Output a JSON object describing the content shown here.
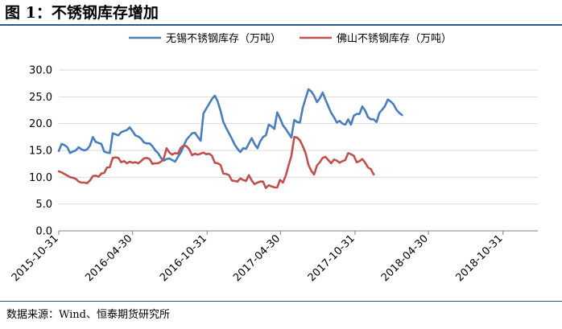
{
  "figure_title": "图 1：不锈钢库存增加",
  "source_note": "数据来源：Wind、恒泰期货研究所",
  "chart_data": {
    "type": "line",
    "title": "",
    "xlabel": "",
    "ylabel": "",
    "ylim": [
      0,
      30
    ],
    "yticks": [
      "0.0",
      "5.0",
      "10.0",
      "15.0",
      "20.0",
      "25.0",
      "30.0"
    ],
    "xticks": [
      "2015-10-31",
      "2016-04-30",
      "2016-10-31",
      "2017-04-30",
      "2017-10-31",
      "2018-04-30",
      "2018-10-31"
    ],
    "x_start": "2015-10-31",
    "x_end": "2019-01-25",
    "grid": "horizontal",
    "legend_position": "top",
    "series": [
      {
        "name": "无锡不锈钢库存（万吨）",
        "color": "#4a7ebb",
        "points": [
          [
            "2015-10-31",
            14.9
          ],
          [
            "2015-11-07",
            16.2
          ],
          [
            "2015-11-14",
            16.0
          ],
          [
            "2015-11-21",
            15.6
          ],
          [
            "2015-11-28",
            14.5
          ],
          [
            "2015-12-05",
            14.8
          ],
          [
            "2015-12-12",
            15.0
          ],
          [
            "2015-12-19",
            15.6
          ],
          [
            "2015-12-26",
            15.2
          ],
          [
            "2016-01-02",
            15.0
          ],
          [
            "2016-01-09",
            15.2
          ],
          [
            "2016-01-16",
            15.9
          ],
          [
            "2016-01-23",
            17.5
          ],
          [
            "2016-01-30",
            16.6
          ],
          [
            "2016-02-06",
            16.4
          ],
          [
            "2016-02-13",
            16.2
          ],
          [
            "2016-02-20",
            14.8
          ],
          [
            "2016-02-27",
            14.6
          ],
          [
            "2016-03-05",
            14.5
          ],
          [
            "2016-03-12",
            18.2
          ],
          [
            "2016-03-19",
            18.0
          ],
          [
            "2016-03-26",
            17.8
          ],
          [
            "2016-04-02",
            18.4
          ],
          [
            "2016-04-09",
            18.6
          ],
          [
            "2016-04-16",
            18.8
          ],
          [
            "2016-04-23",
            19.3
          ],
          [
            "2016-04-30",
            18.6
          ],
          [
            "2016-05-07",
            17.8
          ],
          [
            "2016-05-14",
            17.6
          ],
          [
            "2016-05-21",
            17.2
          ],
          [
            "2016-05-28",
            16.5
          ],
          [
            "2016-06-04",
            16.3
          ],
          [
            "2016-06-11",
            16.3
          ],
          [
            "2016-06-18",
            15.8
          ],
          [
            "2016-06-25",
            15.0
          ],
          [
            "2016-07-02",
            14.5
          ],
          [
            "2016-07-09",
            13.6
          ],
          [
            "2016-07-16",
            13.1
          ],
          [
            "2016-07-23",
            13.4
          ],
          [
            "2016-07-30",
            13.5
          ],
          [
            "2016-08-06",
            13.2
          ],
          [
            "2016-08-13",
            12.9
          ],
          [
            "2016-08-20",
            13.8
          ],
          [
            "2016-08-27",
            14.6
          ],
          [
            "2016-09-03",
            15.8
          ],
          [
            "2016-09-10",
            17.0
          ],
          [
            "2016-09-17",
            17.6
          ],
          [
            "2016-09-24",
            18.2
          ],
          [
            "2016-10-01",
            18.3
          ],
          [
            "2016-10-08",
            17.5
          ],
          [
            "2016-10-15",
            16.8
          ],
          [
            "2016-10-22",
            21.9
          ],
          [
            "2016-10-29",
            22.8
          ],
          [
            "2016-11-05",
            23.7
          ],
          [
            "2016-11-12",
            24.6
          ],
          [
            "2016-11-19",
            25.2
          ],
          [
            "2016-11-26",
            24.2
          ],
          [
            "2016-12-03",
            22.4
          ],
          [
            "2016-12-10",
            20.3
          ],
          [
            "2016-12-17",
            19.2
          ],
          [
            "2016-12-24",
            18.2
          ],
          [
            "2016-12-31",
            17.2
          ],
          [
            "2017-01-07",
            16.1
          ],
          [
            "2017-01-14",
            15.3
          ],
          [
            "2017-01-21",
            14.7
          ],
          [
            "2017-01-28",
            15.4
          ],
          [
            "2017-02-04",
            15.3
          ],
          [
            "2017-02-11",
            16.3
          ],
          [
            "2017-02-18",
            17.3
          ],
          [
            "2017-02-25",
            16.2
          ],
          [
            "2017-03-04",
            15.4
          ],
          [
            "2017-03-11",
            16.7
          ],
          [
            "2017-03-18",
            17.5
          ],
          [
            "2017-03-25",
            17.8
          ],
          [
            "2017-04-01",
            19.8
          ],
          [
            "2017-04-08",
            19.5
          ],
          [
            "2017-04-15",
            19.0
          ],
          [
            "2017-04-22",
            22.1
          ],
          [
            "2017-04-29",
            21.0
          ],
          [
            "2017-05-06",
            19.7
          ],
          [
            "2017-05-13",
            19.0
          ],
          [
            "2017-05-20",
            18.2
          ],
          [
            "2017-05-27",
            17.4
          ],
          [
            "2017-06-03",
            20.7
          ],
          [
            "2017-06-10",
            20.3
          ],
          [
            "2017-06-17",
            20.2
          ],
          [
            "2017-06-24",
            22.9
          ],
          [
            "2017-07-01",
            24.7
          ],
          [
            "2017-07-08",
            26.4
          ],
          [
            "2017-07-15",
            26.0
          ],
          [
            "2017-07-22",
            25.2
          ],
          [
            "2017-07-29",
            24.0
          ],
          [
            "2017-08-05",
            24.7
          ],
          [
            "2017-08-12",
            25.8
          ],
          [
            "2017-08-19",
            24.5
          ],
          [
            "2017-08-26",
            23.2
          ],
          [
            "2017-09-02",
            22.0
          ],
          [
            "2017-09-09",
            21.2
          ],
          [
            "2017-09-16",
            20.2
          ],
          [
            "2017-09-23",
            20.5
          ],
          [
            "2017-09-30",
            20.0
          ],
          [
            "2017-10-07",
            19.8
          ],
          [
            "2017-10-14",
            20.8
          ],
          [
            "2017-10-21",
            19.8
          ],
          [
            "2017-10-28",
            21.5
          ],
          [
            "2017-11-04",
            21.8
          ],
          [
            "2017-11-11",
            21.8
          ],
          [
            "2017-11-18",
            23.2
          ],
          [
            "2017-11-25",
            22.4
          ],
          [
            "2017-12-02",
            21.2
          ],
          [
            "2017-12-09",
            20.8
          ],
          [
            "2017-12-16",
            20.8
          ],
          [
            "2017-12-23",
            20.3
          ],
          [
            "2017-12-30",
            22.0
          ],
          [
            "2018-01-06",
            22.6
          ],
          [
            "2018-01-13",
            23.3
          ],
          [
            "2018-01-20",
            24.5
          ],
          [
            "2018-01-27",
            24.1
          ],
          [
            "2018-02-03",
            23.6
          ],
          [
            "2018-02-10",
            22.6
          ],
          [
            "2018-02-17",
            22.0
          ],
          [
            "2018-02-24",
            21.6
          ]
        ]
      },
      {
        "name": "佛山不锈钢库存（万吨）",
        "color": "#c0504d",
        "points": [
          [
            "2015-10-31",
            11.1
          ],
          [
            "2015-11-07",
            10.9
          ],
          [
            "2015-11-14",
            10.6
          ],
          [
            "2015-11-21",
            10.3
          ],
          [
            "2015-11-28",
            10.0
          ],
          [
            "2015-12-05",
            9.9
          ],
          [
            "2015-12-12",
            9.7
          ],
          [
            "2015-12-19",
            9.2
          ],
          [
            "2015-12-26",
            9.0
          ],
          [
            "2016-01-02",
            9.0
          ],
          [
            "2016-01-09",
            8.9
          ],
          [
            "2016-01-16",
            9.4
          ],
          [
            "2016-01-23",
            10.2
          ],
          [
            "2016-01-30",
            10.3
          ],
          [
            "2016-02-06",
            10.1
          ],
          [
            "2016-02-13",
            10.7
          ],
          [
            "2016-02-20",
            10.8
          ],
          [
            "2016-02-27",
            11.8
          ],
          [
            "2016-03-05",
            11.9
          ],
          [
            "2016-03-12",
            13.6
          ],
          [
            "2016-03-19",
            13.7
          ],
          [
            "2016-03-26",
            13.6
          ],
          [
            "2016-04-02",
            12.8
          ],
          [
            "2016-04-09",
            13.0
          ],
          [
            "2016-04-16",
            12.6
          ],
          [
            "2016-04-23",
            12.9
          ],
          [
            "2016-04-30",
            12.7
          ],
          [
            "2016-05-07",
            12.8
          ],
          [
            "2016-05-14",
            12.6
          ],
          [
            "2016-05-21",
            13.0
          ],
          [
            "2016-05-28",
            13.5
          ],
          [
            "2016-06-04",
            13.6
          ],
          [
            "2016-06-11",
            13.4
          ],
          [
            "2016-06-18",
            12.5
          ],
          [
            "2016-06-25",
            12.6
          ],
          [
            "2016-07-02",
            12.6
          ],
          [
            "2016-07-09",
            12.9
          ],
          [
            "2016-07-16",
            13.5
          ],
          [
            "2016-07-23",
            15.4
          ],
          [
            "2016-07-30",
            14.6
          ],
          [
            "2016-08-06",
            14.2
          ],
          [
            "2016-08-13",
            14.5
          ],
          [
            "2016-08-20",
            14.4
          ],
          [
            "2016-08-27",
            15.5
          ],
          [
            "2016-09-03",
            15.9
          ],
          [
            "2016-09-10",
            15.8
          ],
          [
            "2016-09-17",
            15.2
          ],
          [
            "2016-09-24",
            14.1
          ],
          [
            "2016-10-01",
            14.4
          ],
          [
            "2016-10-08",
            14.2
          ],
          [
            "2016-10-15",
            14.4
          ],
          [
            "2016-10-22",
            14.6
          ],
          [
            "2016-10-29",
            14.3
          ],
          [
            "2016-11-05",
            14.4
          ],
          [
            "2016-11-12",
            14.0
          ],
          [
            "2016-11-19",
            12.7
          ],
          [
            "2016-11-26",
            12.6
          ],
          [
            "2016-12-03",
            12.3
          ],
          [
            "2016-12-10",
            10.7
          ],
          [
            "2016-12-17",
            10.6
          ],
          [
            "2016-12-24",
            10.4
          ],
          [
            "2016-12-31",
            9.4
          ],
          [
            "2017-01-07",
            9.3
          ],
          [
            "2017-01-14",
            9.2
          ],
          [
            "2017-01-21",
            9.8
          ],
          [
            "2017-01-28",
            9.5
          ],
          [
            "2017-02-04",
            9.3
          ],
          [
            "2017-02-11",
            10.4
          ],
          [
            "2017-02-18",
            9.4
          ],
          [
            "2017-02-25",
            8.7
          ],
          [
            "2017-03-04",
            9.0
          ],
          [
            "2017-03-11",
            9.2
          ],
          [
            "2017-03-18",
            9.2
          ],
          [
            "2017-03-25",
            8.0
          ],
          [
            "2017-04-01",
            8.5
          ],
          [
            "2017-04-08",
            8.3
          ],
          [
            "2017-04-15",
            8.1
          ],
          [
            "2017-04-22",
            8.1
          ],
          [
            "2017-04-29",
            9.5
          ],
          [
            "2017-05-06",
            9.0
          ],
          [
            "2017-05-13",
            10.3
          ],
          [
            "2017-05-20",
            12.2
          ],
          [
            "2017-05-27",
            14.0
          ],
          [
            "2017-06-03",
            17.5
          ],
          [
            "2017-06-10",
            17.4
          ],
          [
            "2017-06-17",
            16.9
          ],
          [
            "2017-06-24",
            15.8
          ],
          [
            "2017-07-01",
            14.5
          ],
          [
            "2017-07-08",
            12.3
          ],
          [
            "2017-07-15",
            11.2
          ],
          [
            "2017-07-22",
            10.5
          ],
          [
            "2017-07-29",
            12.2
          ],
          [
            "2017-08-05",
            12.8
          ],
          [
            "2017-08-12",
            13.6
          ],
          [
            "2017-08-19",
            13.8
          ],
          [
            "2017-08-26",
            13.2
          ],
          [
            "2017-09-02",
            12.6
          ],
          [
            "2017-09-09",
            13.3
          ],
          [
            "2017-09-16",
            13.1
          ],
          [
            "2017-09-23",
            12.7
          ],
          [
            "2017-09-30",
            13.0
          ],
          [
            "2017-10-07",
            13.2
          ],
          [
            "2017-10-14",
            14.5
          ],
          [
            "2017-10-21",
            14.3
          ],
          [
            "2017-10-28",
            14.0
          ],
          [
            "2017-11-04",
            12.8
          ],
          [
            "2017-11-11",
            13.0
          ],
          [
            "2017-11-18",
            13.4
          ],
          [
            "2017-11-25",
            12.7
          ],
          [
            "2017-12-02",
            11.8
          ],
          [
            "2017-12-09",
            11.5
          ],
          [
            "2017-12-16",
            10.5
          ]
        ]
      }
    ]
  }
}
